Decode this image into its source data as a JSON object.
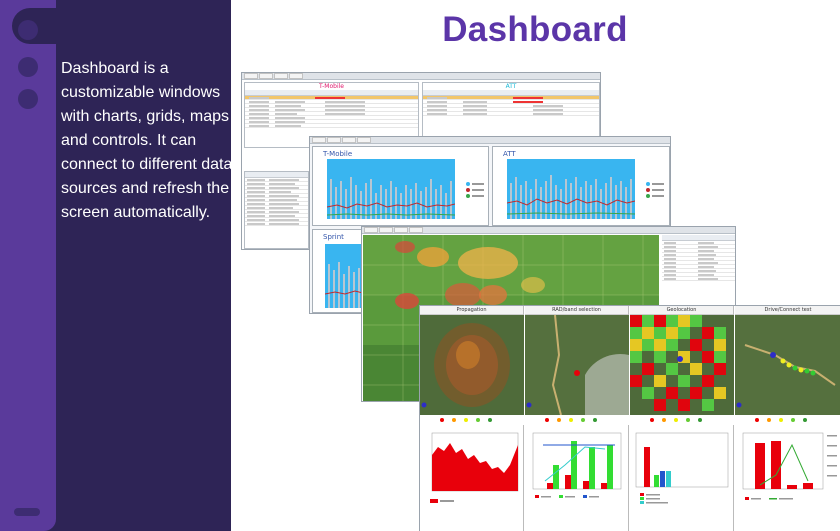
{
  "page": {
    "title": "Dashboard",
    "description": "Dashboard is a customizable windows with charts, grids, maps and controls. It can connect to different data sources and refresh the screen automatically."
  },
  "screenshot_1": {
    "grid_titles": [
      "T-Mobile",
      "ATT"
    ],
    "charts": [
      {
        "title": "T-Mobile"
      },
      {
        "title": "ATT"
      },
      {
        "title": "Sprint"
      }
    ]
  },
  "screenshot_3": {
    "panels": [
      "Propagation",
      "RAD/band selection",
      "Geolocation",
      "Drive/Connect test"
    ]
  },
  "colors": {
    "sidebar": "#2e2456",
    "accent": "#5a3a9b",
    "title": "#5b35a8",
    "chart_fill": "#39b5f0",
    "red": "#e8000b"
  }
}
